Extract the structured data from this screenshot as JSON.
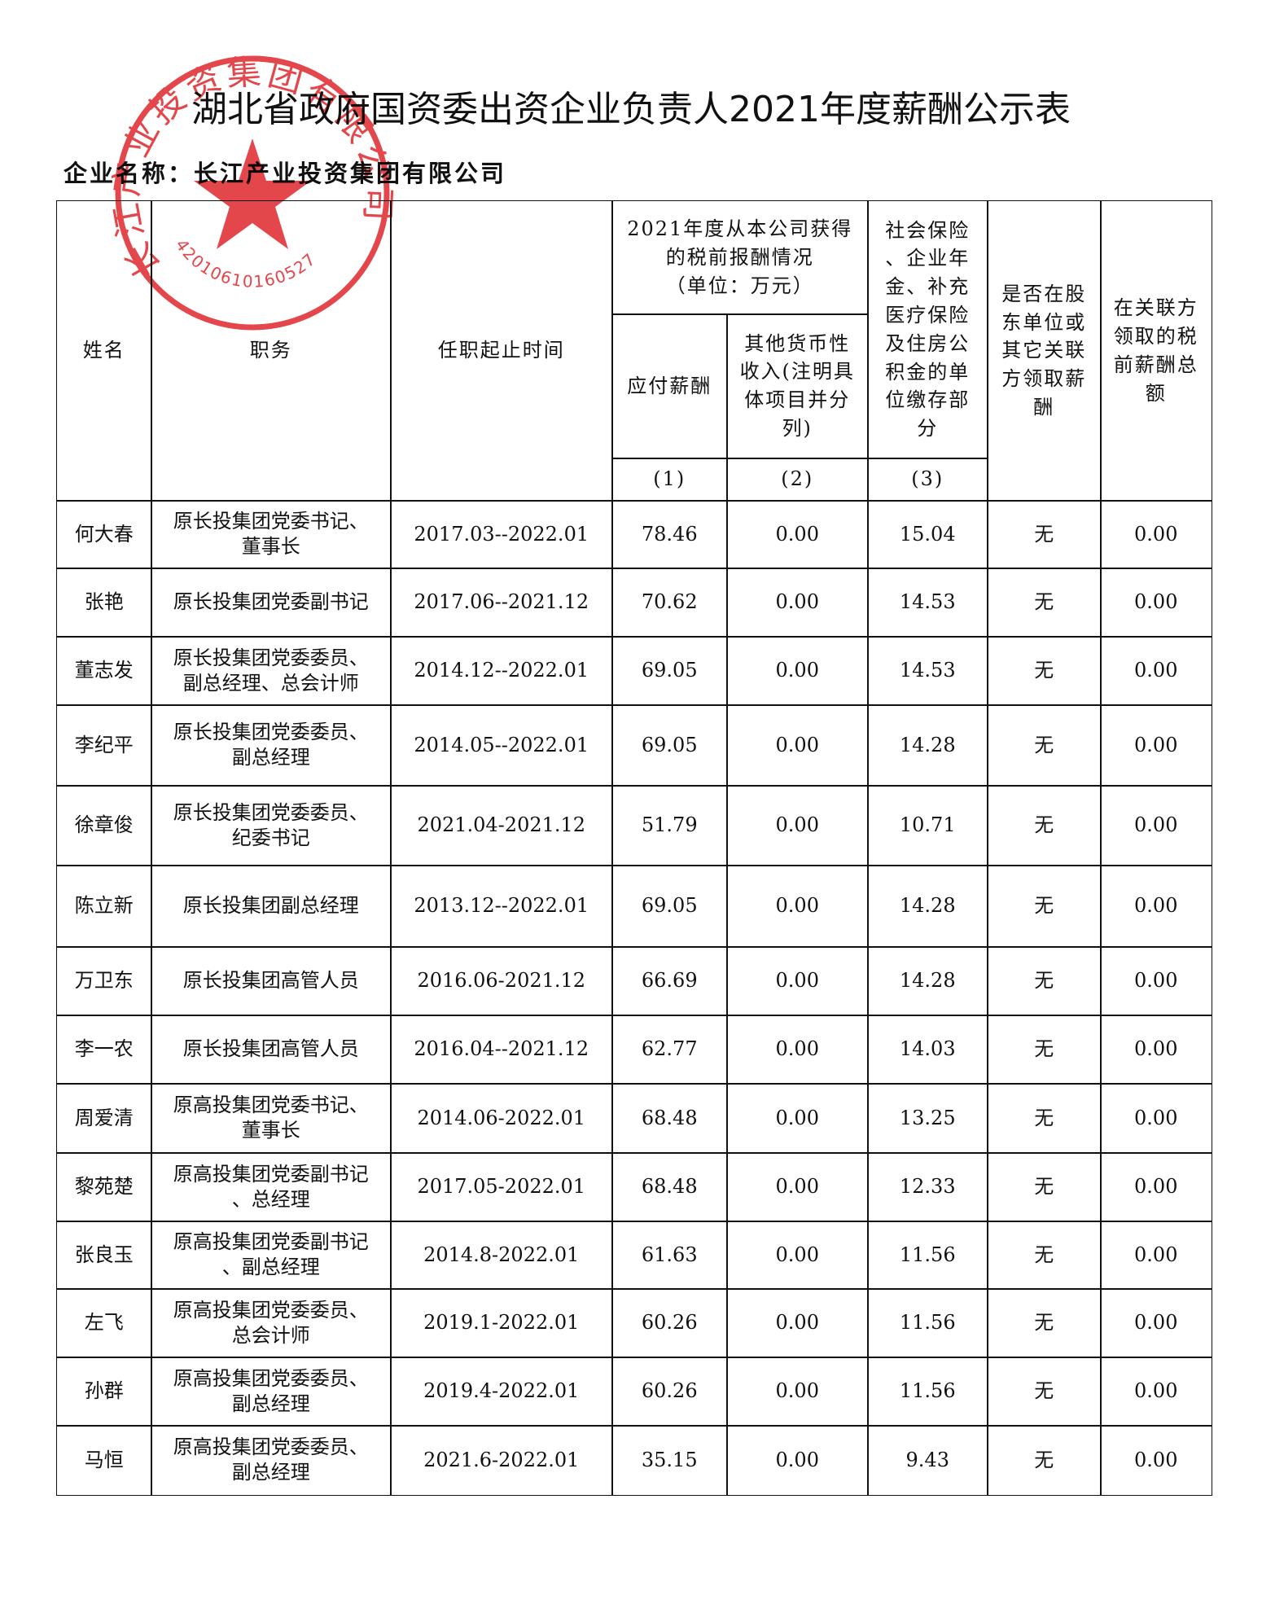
{
  "title": "湖北省政府国资委出资企业负责人2021年度薪酬公示表",
  "company": {
    "label": "企业名称：",
    "name": "长江产业投资集团有限公司"
  },
  "stamp": {
    "name": "长江产业投资集团有限公司",
    "code": "42010610160527"
  },
  "table": {
    "headers": {
      "name": "姓名",
      "position": "职务",
      "term": "任职起止时间",
      "group": "2021年度从本公司获得\n的税前报酬情况\n（单位：万元）",
      "col1": "应付薪酬",
      "col2": "其他货币性\n收入(注明具\n体项目并分\n列)",
      "col3": "社会保险\n、企业年\n金、补充\n医疗保险\n及住房公\n积金的单\n位缴存部\n分",
      "shareholder": "是否在股\n东单位或\n其它关联\n方领取薪\n酬",
      "related": "在关联方\n领取的税\n前薪酬总\n额",
      "indices": [
        "(1)",
        "(2)",
        "(3)"
      ]
    },
    "rows": [
      [
        "何大春",
        "原长投集团党委书记、\n董事长",
        "2017.03--2022.01",
        "78.46",
        "0.00",
        "15.04",
        "无",
        "0.00"
      ],
      [
        "张艳",
        "原长投集团党委副书记",
        "2017.06--2021.12",
        "70.62",
        "0.00",
        "14.53",
        "无",
        "0.00"
      ],
      [
        "董志发",
        "原长投集团党委委员、\n副总经理、总会计师",
        "2014.12--2022.01",
        "69.05",
        "0.00",
        "14.53",
        "无",
        "0.00"
      ],
      [
        "李纪平",
        "原长投集团党委委员、\n副总经理",
        "2014.05--2022.01",
        "69.05",
        "0.00",
        "14.28",
        "无",
        "0.00"
      ],
      [
        "徐章俊",
        "原长投集团党委委员、\n纪委书记",
        "2021.04-2021.12",
        "51.79",
        "0.00",
        "10.71",
        "无",
        "0.00"
      ],
      [
        "陈立新",
        "原长投集团副总经理",
        "2013.12--2022.01",
        "69.05",
        "0.00",
        "14.28",
        "无",
        "0.00"
      ],
      [
        "万卫东",
        "原长投集团高管人员",
        "2016.06-2021.12",
        "66.69",
        "0.00",
        "14.28",
        "无",
        "0.00"
      ],
      [
        "李一农",
        "原长投集团高管人员",
        "2016.04--2021.12",
        "62.77",
        "0.00",
        "14.03",
        "无",
        "0.00"
      ],
      [
        "周爱清",
        "原高投集团党委书记、\n董事长",
        "2014.06-2022.01",
        "68.48",
        "0.00",
        "13.25",
        "无",
        "0.00"
      ],
      [
        "黎苑楚",
        "原高投集团党委副书记\n、总经理",
        "2017.05-2022.01",
        "68.48",
        "0.00",
        "12.33",
        "无",
        "0.00"
      ],
      [
        "张良玉",
        "原高投集团党委副书记\n、副总经理",
        "2014.8-2022.01",
        "61.63",
        "0.00",
        "11.56",
        "无",
        "0.00"
      ],
      [
        "左飞",
        "原高投集团党委委员、\n总会计师",
        "2019.1-2022.01",
        "60.26",
        "0.00",
        "11.56",
        "无",
        "0.00"
      ],
      [
        "孙群",
        "原高投集团党委委员、\n副总经理",
        "2019.4-2022.01",
        "60.26",
        "0.00",
        "11.56",
        "无",
        "0.00"
      ],
      [
        "马恒",
        "原高投集团党委委员、\n副总经理",
        "2021.6-2022.01",
        "35.15",
        "0.00",
        "9.43",
        "无",
        "0.00"
      ]
    ]
  }
}
